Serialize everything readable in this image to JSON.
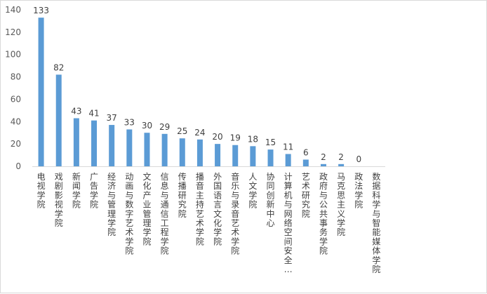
{
  "chart_data": {
    "type": "bar",
    "categories": [
      "电视学院",
      "戏剧影视学院",
      "新闻学院",
      "广告学院",
      "经济与管理学院",
      "动画与数字艺术学院",
      "文化产业管理学院",
      "信息与通信工程学院",
      "传播研究院",
      "播音主持艺术学院",
      "外国语言文化学院",
      "音乐与录音艺术学院",
      "人文学院",
      "协同创新中心",
      "计算机与网络空间安全…",
      "艺术研究院",
      "政府与公共事务学院",
      "马克思主义学院",
      "政法学院",
      "数据科学与智能媒体学院"
    ],
    "values": [
      133,
      82,
      43,
      41,
      37,
      33,
      30,
      29,
      25,
      24,
      20,
      19,
      18,
      15,
      11,
      6,
      2,
      2,
      0,
      null
    ],
    "data_labels": [
      "133",
      "82",
      "43",
      "41",
      "37",
      "33",
      "30",
      "29",
      "25",
      "24",
      "20",
      "19",
      "18",
      "15",
      "11",
      "6",
      "2",
      "2",
      "0",
      ""
    ],
    "ylim": [
      0,
      140
    ],
    "yticks": [
      0,
      20,
      40,
      60,
      80,
      100,
      120,
      140
    ],
    "grid": false,
    "legend": "none",
    "bar_color": "#5b9bd5",
    "axis_color": "#d9d9d9"
  }
}
